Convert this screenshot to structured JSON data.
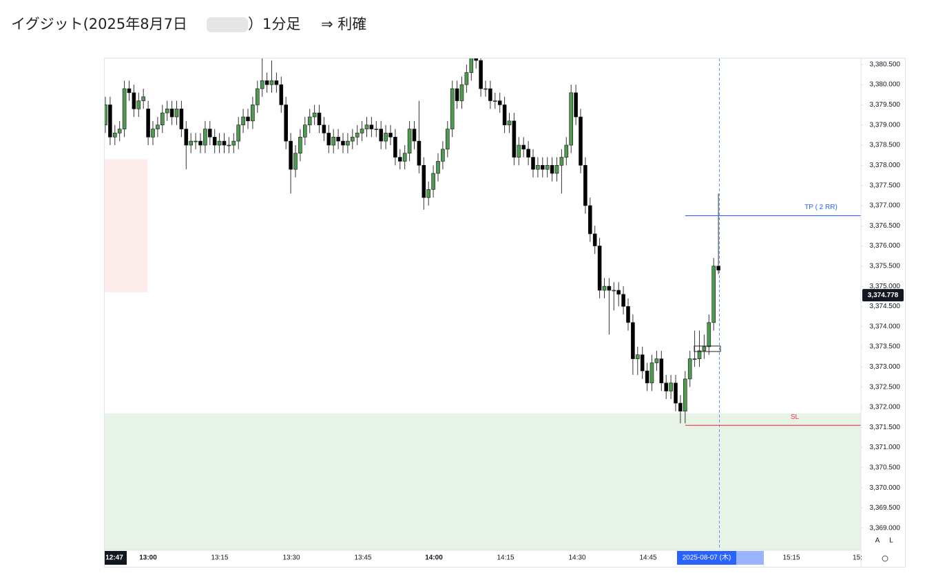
{
  "title": {
    "main": "イグジット(2025年8月7日",
    "sub": "）1分足",
    "result": "⇒ 利確"
  },
  "chart_data": {
    "type": "candlestick",
    "open": [
      3379.0,
      3379.5,
      3378.7,
      3378.8,
      3378.9,
      3379.9,
      3379.8,
      3379.4,
      3379.6,
      3379.4,
      3378.7,
      3378.9,
      3379.0,
      3379.3,
      3379.4,
      3379.2,
      3379.4,
      3378.9,
      3378.5,
      3378.6,
      3378.6,
      3378.5,
      3378.9,
      3378.7,
      3378.5,
      3378.6,
      3378.5,
      3378.5,
      3378.6,
      3379.0,
      3379.2,
      3379.1,
      3379.5,
      3379.9,
      3380.1,
      3380.0,
      3380.1,
      3380.0,
      3379.5,
      3378.6,
      3377.9,
      3378.3,
      3378.7,
      3379.0,
      3379.2,
      3379.3,
      3379.0,
      3378.8,
      3378.5,
      3378.7,
      3378.6,
      3378.5,
      3378.6,
      3378.7,
      3378.8,
      3378.9,
      3379.0,
      3378.9,
      3378.9,
      3378.6,
      3378.8,
      3378.7,
      3378.2,
      3378.1,
      3378.3,
      3378.9,
      3378.6,
      3378.0,
      3377.2,
      3377.4,
      3377.8,
      3378.1,
      3378.4,
      3378.9,
      3379.9,
      3379.6,
      3380.0,
      3380.3,
      3380.7,
      3380.6,
      3379.9,
      3379.9,
      3379.6,
      3379.6,
      3379.5,
      3379.0,
      3379.1,
      3378.2,
      3378.5,
      3378.4,
      3378.2,
      3377.9,
      3378.0,
      3377.9,
      3378.0,
      3377.8,
      3378.0,
      3378.2,
      3378.5,
      3379.8,
      3379.2,
      3378.0,
      3377.0,
      3376.3,
      3376.0,
      3374.9,
      3375.0,
      3374.9,
      3374.9,
      3374.8,
      3374.5,
      3374.1,
      3373.2,
      3373.3,
      3372.9,
      3372.6,
      3373.1,
      3373.2,
      3372.6,
      3372.4,
      3372.6,
      3372.1,
      3371.9,
      3372.7,
      3373.2,
      3373.2,
      3373.4,
      3373.5,
      3374.1,
      3375.5
    ],
    "high": [
      3379.7,
      3379.7,
      3379.0,
      3379.1,
      3380.1,
      3380.1,
      3380.0,
      3379.8,
      3379.9,
      3379.6,
      3379.1,
      3379.2,
      3379.5,
      3379.6,
      3379.6,
      3379.6,
      3379.6,
      3379.1,
      3378.8,
      3378.8,
      3378.8,
      3379.1,
      3379.1,
      3378.9,
      3378.8,
      3378.8,
      3378.7,
      3378.8,
      3379.2,
      3379.4,
      3379.4,
      3379.7,
      3380.1,
      3380.7,
      3380.3,
      3380.6,
      3380.3,
      3380.2,
      3379.7,
      3378.8,
      3378.5,
      3378.9,
      3379.2,
      3379.4,
      3379.5,
      3379.5,
      3379.2,
      3379.0,
      3378.9,
      3378.9,
      3378.8,
      3378.8,
      3378.9,
      3379.0,
      3379.1,
      3379.2,
      3379.2,
      3379.1,
      3379.1,
      3379.0,
      3379.0,
      3378.9,
      3378.4,
      3378.5,
      3379.1,
      3379.1,
      3379.6,
      3378.2,
      3377.6,
      3378.0,
      3378.3,
      3378.6,
      3379.1,
      3380.1,
      3380.1,
      3380.2,
      3380.5,
      3380.9,
      3380.9,
      3380.8,
      3380.1,
      3380.1,
      3379.8,
      3379.8,
      3379.7,
      3379.3,
      3379.3,
      3378.7,
      3378.7,
      3378.6,
      3378.4,
      3378.2,
      3378.2,
      3378.2,
      3378.2,
      3378.2,
      3378.4,
      3378.7,
      3380.0,
      3380.0,
      3379.4,
      3378.2,
      3377.2,
      3376.5,
      3376.2,
      3375.2,
      3375.2,
      3375.1,
      3375.1,
      3375.0,
      3374.7,
      3374.3,
      3373.5,
      3373.5,
      3373.1,
      3373.3,
      3373.4,
      3373.4,
      3372.8,
      3372.8,
      3372.8,
      3372.3,
      3372.9,
      3373.4,
      3373.9,
      3373.9,
      3373.8,
      3374.3,
      3375.7,
      3377.3
    ],
    "low": [
      3378.8,
      3378.5,
      3378.5,
      3378.6,
      3378.7,
      3379.6,
      3379.2,
      3379.2,
      3379.4,
      3378.5,
      3378.5,
      3378.7,
      3378.8,
      3379.1,
      3379.0,
      3379.0,
      3378.7,
      3377.9,
      3378.3,
      3378.4,
      3378.3,
      3378.3,
      3378.5,
      3378.3,
      3378.3,
      3378.3,
      3378.3,
      3378.3,
      3378.4,
      3378.8,
      3378.9,
      3378.9,
      3379.3,
      3379.7,
      3379.8,
      3379.8,
      3379.8,
      3379.3,
      3378.4,
      3377.3,
      3377.7,
      3378.1,
      3378.5,
      3378.8,
      3379.0,
      3378.8,
      3378.6,
      3378.3,
      3378.3,
      3378.4,
      3378.3,
      3378.3,
      3378.4,
      3378.5,
      3378.6,
      3378.7,
      3378.7,
      3378.7,
      3378.4,
      3378.4,
      3378.5,
      3378.0,
      3377.9,
      3377.9,
      3378.1,
      3378.4,
      3377.8,
      3376.9,
      3377.0,
      3377.2,
      3377.6,
      3377.9,
      3378.2,
      3378.7,
      3379.4,
      3379.4,
      3379.8,
      3380.1,
      3380.4,
      3379.7,
      3379.7,
      3379.4,
      3379.4,
      3379.3,
      3378.8,
      3378.8,
      3378.0,
      3378.0,
      3378.2,
      3378.0,
      3377.7,
      3377.7,
      3377.7,
      3377.7,
      3377.6,
      3377.6,
      3377.3,
      3378.0,
      3378.3,
      3379.0,
      3377.8,
      3376.8,
      3376.1,
      3375.8,
      3374.7,
      3374.7,
      3373.8,
      3374.4,
      3374.5,
      3374.3,
      3373.9,
      3372.8,
      3372.8,
      3372.7,
      3372.4,
      3372.4,
      3372.9,
      3372.4,
      3372.2,
      3372.2,
      3371.9,
      3371.6,
      3371.6,
      3372.5,
      3373.0,
      3373.0,
      3373.2,
      3373.3,
      3373.9,
      3375.3
    ],
    "close": [
      3379.5,
      3378.7,
      3378.8,
      3378.9,
      3379.9,
      3379.8,
      3379.4,
      3379.6,
      3379.7,
      3378.7,
      3378.9,
      3379.0,
      3379.3,
      3379.4,
      3379.2,
      3379.4,
      3378.9,
      3378.5,
      3378.6,
      3378.6,
      3378.5,
      3378.9,
      3378.7,
      3378.5,
      3378.6,
      3378.5,
      3378.5,
      3378.6,
      3379.0,
      3379.2,
      3379.1,
      3379.5,
      3379.9,
      3380.1,
      3380.0,
      3380.1,
      3380.0,
      3379.5,
      3378.6,
      3377.9,
      3378.3,
      3378.7,
      3379.0,
      3379.2,
      3379.3,
      3379.0,
      3378.8,
      3378.5,
      3378.7,
      3378.6,
      3378.5,
      3378.6,
      3378.7,
      3378.8,
      3378.9,
      3379.0,
      3378.9,
      3378.9,
      3378.6,
      3378.8,
      3378.7,
      3378.2,
      3378.1,
      3378.3,
      3378.9,
      3378.6,
      3378.0,
      3377.2,
      3377.4,
      3377.8,
      3378.1,
      3378.4,
      3378.9,
      3379.9,
      3379.6,
      3380.0,
      3380.3,
      3380.7,
      3380.6,
      3379.9,
      3379.9,
      3379.6,
      3379.6,
      3379.5,
      3379.0,
      3379.1,
      3378.2,
      3378.5,
      3378.4,
      3378.2,
      3377.9,
      3378.0,
      3377.9,
      3378.0,
      3377.8,
      3378.0,
      3378.2,
      3378.5,
      3379.8,
      3379.2,
      3378.0,
      3377.0,
      3376.3,
      3376.0,
      3374.9,
      3375.0,
      3374.9,
      3374.9,
      3374.8,
      3374.5,
      3374.1,
      3373.2,
      3373.3,
      3372.9,
      3372.6,
      3373.1,
      3373.2,
      3372.6,
      3372.4,
      3372.6,
      3372.1,
      3371.9,
      3372.7,
      3373.2,
      3373.2,
      3373.4,
      3373.5,
      3374.1,
      3375.5,
      3375.4
    ],
    "up_color": "#4e9a4e",
    "down_color": "#000000",
    "ylim": [
      3368.45,
      3380.65
    ],
    "yticks": [
      {
        "value": 3369,
        "label": "3,369.000"
      },
      {
        "value": 3369.5,
        "label": "3,369.500"
      },
      {
        "value": 3370,
        "label": "3,370.000"
      },
      {
        "value": 3370.5,
        "label": "3,370.500"
      },
      {
        "value": 3371,
        "label": "3,371.000"
      },
      {
        "value": 3371.5,
        "label": "3,371.500"
      },
      {
        "value": 3372,
        "label": "3,372.000"
      },
      {
        "value": 3372.5,
        "label": "3,372.500"
      },
      {
        "value": 3373,
        "label": "3,373.000"
      },
      {
        "value": 3373.5,
        "label": "3,373.500"
      },
      {
        "value": 3374,
        "label": "3,374.000"
      },
      {
        "value": 3374.5,
        "label": "3,374.500"
      },
      {
        "value": 3375,
        "label": "3,375.000"
      },
      {
        "value": 3375.5,
        "label": "3,375.500"
      },
      {
        "value": 3376,
        "label": "3,376.000"
      },
      {
        "value": 3376.5,
        "label": "3,376.500"
      },
      {
        "value": 3377,
        "label": "3,377.000"
      },
      {
        "value": 3377.5,
        "label": "3,377.500"
      },
      {
        "value": 3378,
        "label": "3,378.000"
      },
      {
        "value": 3378.5,
        "label": "3,378.500"
      },
      {
        "value": 3379,
        "label": "3,379.000"
      },
      {
        "value": 3379.5,
        "label": "3,379.500"
      },
      {
        "value": 3380,
        "label": "3,380.000"
      },
      {
        "value": 3380.5,
        "label": "3,380.500"
      }
    ],
    "xtick_labels": [
      "12:47",
      "13:00",
      "13:15",
      "13:30",
      "13:45",
      "14:00",
      "14:15",
      "14:30",
      "14:45",
      "2025-08-07 (木)",
      "15:15",
      "15:"
    ],
    "annotations": [
      {
        "label": "TP ( 2 RR)",
        "value": 3376.75,
        "color": "#2962ff"
      },
      {
        "label": "SL",
        "value": 3371.55,
        "color": "#f23645"
      }
    ],
    "last_price": {
      "value": 3374.778,
      "label": "3,374.778"
    },
    "zones": [
      {
        "from": 3378.15,
        "to": 3374.85,
        "color": "#fdecec"
      },
      {
        "from": 3371.85,
        "color": "#e8f3e8"
      }
    ]
  },
  "buttons": [
    "A",
    "L"
  ]
}
